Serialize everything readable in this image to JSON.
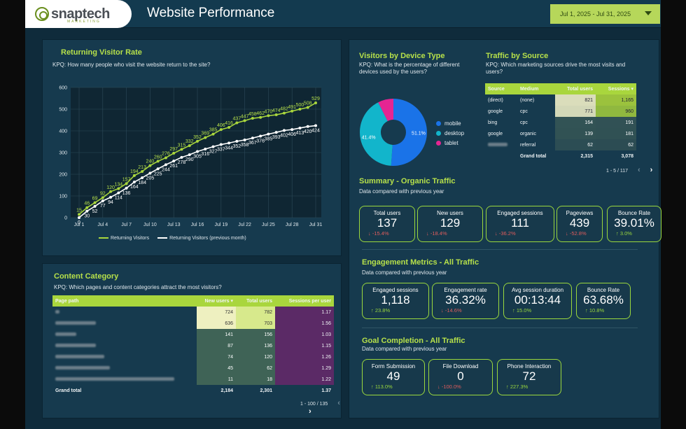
{
  "header": {
    "logo_text": "snaptech",
    "logo_sub": "MARKETING",
    "title": "Website Performance",
    "date_range": "Jul 1, 2025 - Jul 31, 2025"
  },
  "returning": {
    "title": "Returning Visitor Rate",
    "kpq": "KPQ: How many people who visit the website return to the site?",
    "legend_current": "Returning Visitors",
    "legend_previous": "Returning Visitors (previous month)",
    "y_ticks": [
      "600",
      "500",
      "400",
      "300",
      "200",
      "100",
      "0"
    ],
    "x_ticks": [
      "Jul 1",
      "Jul 4",
      "Jul 7",
      "Jul 10",
      "Jul 13",
      "Jul 16",
      "Jul 19",
      "Jul 22",
      "Jul 25",
      "Jul 28",
      "Jul 31"
    ]
  },
  "chart_data": {
    "type": "line",
    "title": "Returning Visitor Rate",
    "x": [
      "Jul 1",
      "Jul 2",
      "Jul 3",
      "Jul 4",
      "Jul 5",
      "Jul 6",
      "Jul 7",
      "Jul 8",
      "Jul 9",
      "Jul 10",
      "Jul 11",
      "Jul 12",
      "Jul 13",
      "Jul 14",
      "Jul 15",
      "Jul 16",
      "Jul 17",
      "Jul 18",
      "Jul 19",
      "Jul 20",
      "Jul 21",
      "Jul 22",
      "Jul 23",
      "Jul 24",
      "Jul 25",
      "Jul 26",
      "Jul 27",
      "Jul 28",
      "Jul 29",
      "Jul 30",
      "Jul 31"
    ],
    "ylim": [
      0,
      600
    ],
    "series": [
      {
        "name": "Returning Visitors",
        "color": "#a9d63d",
        "values": [
          15,
          46,
          69,
          92,
          120,
          134,
          157,
          194,
          213,
          240,
          260,
          276,
          297,
          315,
          332,
          352,
          369,
          385,
          406,
          416,
          437,
          447,
          458,
          462,
          470,
          474,
          482,
          491,
          500,
          508,
          529
        ]
      },
      {
        "name": "Returning Visitors (previous month)",
        "color": "#ffffff",
        "values": [
          0,
          30,
          52,
          77,
          94,
          114,
          136,
          164,
          184,
          205,
          225,
          244,
          261,
          278,
          290,
          305,
          316,
          327,
          337,
          344,
          352,
          358,
          367,
          376,
          385,
          393,
          402,
          406,
          413,
          420,
          424
        ]
      }
    ]
  },
  "device": {
    "title": "Visitors by Device Type",
    "kpq": "KPQ: What is the percentage of different devices used by the users?",
    "slices": [
      {
        "label": "mobile",
        "value": 51.1,
        "color": "#1a73e8",
        "pct_label": "51.1%"
      },
      {
        "label": "desktop",
        "value": 41.4,
        "color": "#12b5cb",
        "pct_label": "41.4%"
      },
      {
        "label": "tablet",
        "value": 7.5,
        "color": "#e52592",
        "pct_label": ""
      }
    ]
  },
  "traffic": {
    "title": "Traffic by Source",
    "kpq": "KPQ: Which marketing sources drive the most visits and users?",
    "columns": [
      "Source",
      "Medium",
      "Total users",
      "Sessions"
    ],
    "rows": [
      {
        "source": "(direct)",
        "medium": "(none)",
        "users": "821",
        "sessions": "1,165"
      },
      {
        "source": "google",
        "medium": "cpc",
        "users": "771",
        "sessions": "960"
      },
      {
        "source": "bing",
        "medium": "cpc",
        "users": "164",
        "sessions": "191"
      },
      {
        "source": "google",
        "medium": "organic",
        "users": "139",
        "sessions": "181"
      },
      {
        "source": "",
        "medium": "referral",
        "users": "62",
        "sessions": "62"
      }
    ],
    "grand_total_label": "Grand total",
    "total_users": "2,315",
    "total_sessions": "3,078",
    "pager": "1 - 5 / 117"
  },
  "organic": {
    "title": "Summary - Organic Traffic",
    "sub": "Data compared with previous year",
    "cards": [
      {
        "label": "Total users",
        "value": "137",
        "delta": "-15.4%",
        "dir": "down"
      },
      {
        "label": "New users",
        "value": "129",
        "delta": "-18.4%",
        "dir": "down"
      },
      {
        "label": "Engaged sessions",
        "value": "111",
        "delta": "-36.2%",
        "dir": "down"
      },
      {
        "label": "Pageviews",
        "value": "439",
        "delta": "-52.8%",
        "dir": "down"
      },
      {
        "label": "Bounce Rate",
        "value": "39.01%",
        "delta": "3.0%",
        "dir": "up"
      }
    ]
  },
  "engagement": {
    "title": "Engagement Metrics - All Traffic",
    "sub": "Data compared with previous year",
    "cards": [
      {
        "label": "Engaged sessions",
        "value": "1,118",
        "delta": "23.8%",
        "dir": "up"
      },
      {
        "label": "Engagement rate",
        "value": "36.32%",
        "delta": "-14.6%",
        "dir": "down"
      },
      {
        "label": "Avg session duration",
        "value": "00:13:44",
        "delta": "15.0%",
        "dir": "up"
      },
      {
        "label": "Bounce Rate",
        "value": "63.68%",
        "delta": "10.8%",
        "dir": "up"
      }
    ]
  },
  "goals": {
    "title": "Goal Completion - All Traffic",
    "sub": "Data compared with previous year",
    "cards": [
      {
        "label": "Form Submission",
        "value": "49",
        "delta": "113.0%",
        "dir": "up"
      },
      {
        "label": "File Download",
        "value": "0",
        "delta": "-100.0%",
        "dir": "down"
      },
      {
        "label": "Phone Interaction",
        "value": "72",
        "delta": "227.3%",
        "dir": "up"
      }
    ]
  },
  "content": {
    "title": "Content Category",
    "kpq": "KPQ: Which pages and content categories attract the most visitors?",
    "columns": [
      "Page path",
      "New users",
      "Total users",
      "Sessions per user"
    ],
    "rows": [
      {
        "new": "724",
        "total": "782",
        "spu": "1.17"
      },
      {
        "new": "636",
        "total": "703",
        "spu": "1.56"
      },
      {
        "new": "141",
        "total": "156",
        "spu": "1.03"
      },
      {
        "new": "87",
        "total": "136",
        "spu": "1.15"
      },
      {
        "new": "74",
        "total": "120",
        "spu": "1.26"
      },
      {
        "new": "45",
        "total": "62",
        "spu": "1.29"
      },
      {
        "new": "11",
        "total": "18",
        "spu": "1.22"
      }
    ],
    "grand_total_label": "Grand total",
    "total_new": "2,184",
    "total_total": "2,301",
    "total_spu": "1.37",
    "pager": "1 - 100 / 135"
  }
}
